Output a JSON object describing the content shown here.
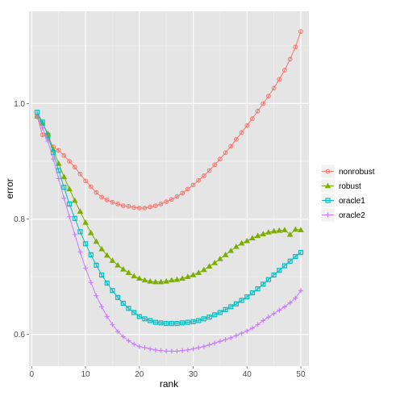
{
  "chart_data": {
    "type": "line",
    "title": "",
    "xlabel": "rank",
    "ylabel": "error",
    "xlim": [
      -0.5,
      51.5
    ],
    "ylim": [
      0.545,
      1.16
    ],
    "x_ticks": [
      0,
      10,
      20,
      30,
      40,
      50
    ],
    "x_tick_labels": [
      "0",
      "10",
      "20",
      "30",
      "40",
      "50"
    ],
    "y_ticks": [
      0.6,
      0.8,
      1.0
    ],
    "y_tick_labels": [
      "0.6",
      "0.8",
      "1.0"
    ],
    "grid": true,
    "legend_position": "right",
    "x": [
      1,
      2,
      3,
      4,
      5,
      6,
      7,
      8,
      9,
      10,
      11,
      12,
      13,
      14,
      15,
      16,
      17,
      18,
      19,
      20,
      21,
      22,
      23,
      24,
      25,
      26,
      27,
      28,
      29,
      30,
      31,
      32,
      33,
      34,
      35,
      36,
      37,
      38,
      39,
      40,
      41,
      42,
      43,
      44,
      45,
      46,
      47,
      48,
      49,
      50
    ],
    "series": [
      {
        "name": "nonrobust",
        "color": "#F8766D",
        "marker": "circle",
        "values": [
          0.978,
          0.946,
          0.94,
          0.925,
          0.919,
          0.91,
          0.9,
          0.89,
          0.878,
          0.866,
          0.856,
          0.846,
          0.838,
          0.833,
          0.829,
          0.826,
          0.823,
          0.822,
          0.82,
          0.819,
          0.819,
          0.821,
          0.823,
          0.826,
          0.83,
          0.834,
          0.839,
          0.845,
          0.852,
          0.859,
          0.867,
          0.875,
          0.884,
          0.894,
          0.904,
          0.915,
          0.926,
          0.938,
          0.95,
          0.962,
          0.974,
          0.987,
          1.0,
          1.013,
          1.027,
          1.042,
          1.058,
          1.077,
          1.098,
          1.125
        ]
      },
      {
        "name": "robust",
        "color": "#7CAE00",
        "marker": "triangle",
        "values": [
          0.978,
          0.966,
          0.948,
          0.92,
          0.896,
          0.873,
          0.852,
          0.832,
          0.813,
          0.794,
          0.776,
          0.761,
          0.748,
          0.737,
          0.728,
          0.72,
          0.713,
          0.707,
          0.701,
          0.697,
          0.694,
          0.692,
          0.691,
          0.691,
          0.692,
          0.694,
          0.695,
          0.697,
          0.7,
          0.703,
          0.707,
          0.712,
          0.718,
          0.724,
          0.731,
          0.738,
          0.745,
          0.752,
          0.758,
          0.762,
          0.767,
          0.771,
          0.774,
          0.777,
          0.779,
          0.78,
          0.781,
          0.773,
          0.782,
          0.781
        ]
      },
      {
        "name": "oracle1",
        "color": "#00BFC4",
        "marker": "square",
        "values": [
          0.985,
          0.968,
          0.945,
          0.915,
          0.884,
          0.855,
          0.826,
          0.801,
          0.778,
          0.757,
          0.738,
          0.72,
          0.703,
          0.689,
          0.676,
          0.664,
          0.654,
          0.645,
          0.638,
          0.631,
          0.627,
          0.624,
          0.621,
          0.62,
          0.619,
          0.619,
          0.619,
          0.62,
          0.621,
          0.622,
          0.624,
          0.627,
          0.63,
          0.634,
          0.638,
          0.643,
          0.648,
          0.653,
          0.659,
          0.665,
          0.672,
          0.679,
          0.687,
          0.695,
          0.703,
          0.711,
          0.719,
          0.727,
          0.735,
          0.742
        ]
      },
      {
        "name": "oracle2",
        "color": "#C77CFF",
        "marker": "plus",
        "values": [
          0.977,
          0.958,
          0.935,
          0.904,
          0.87,
          0.836,
          0.804,
          0.773,
          0.743,
          0.715,
          0.69,
          0.667,
          0.648,
          0.631,
          0.617,
          0.605,
          0.596,
          0.589,
          0.583,
          0.579,
          0.577,
          0.575,
          0.573,
          0.572,
          0.571,
          0.571,
          0.571,
          0.572,
          0.573,
          0.575,
          0.577,
          0.579,
          0.582,
          0.585,
          0.588,
          0.591,
          0.594,
          0.598,
          0.602,
          0.606,
          0.611,
          0.617,
          0.624,
          0.63,
          0.636,
          0.642,
          0.648,
          0.655,
          0.663,
          0.676
        ]
      }
    ]
  }
}
